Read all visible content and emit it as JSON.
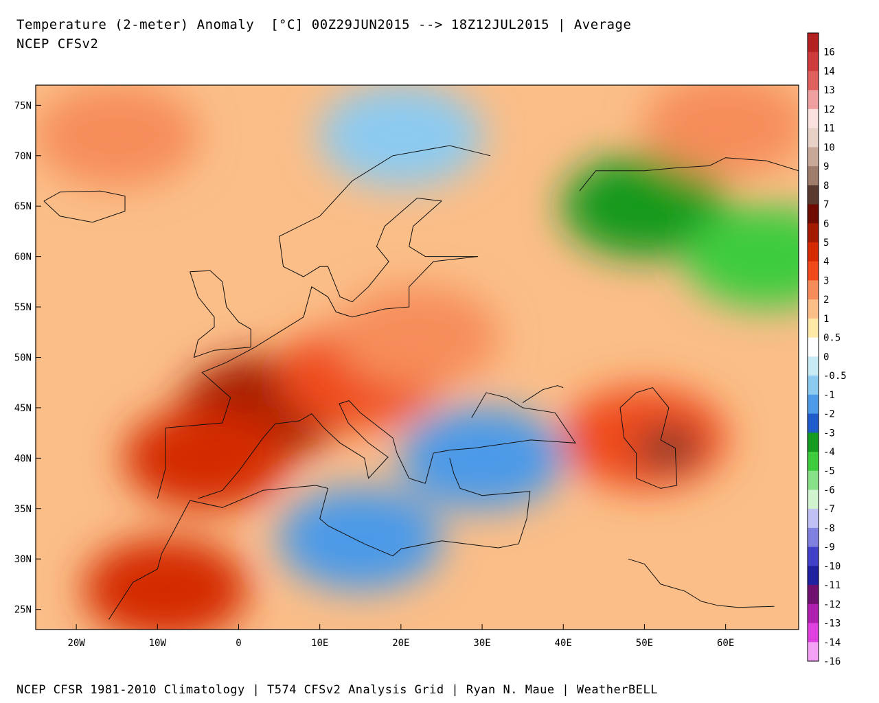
{
  "header": {
    "title": "Temperature (2-meter) Anomaly  [°C] 00Z29JUN2015 --> 18Z12JUL2015 | Average",
    "subtitle": "NCEP CFSv2"
  },
  "footer": {
    "credit": "NCEP CFSR 1981-2010 Climatology | T574 CFSv2 Analysis Grid | Ryan N. Maue | WeatherBELL"
  },
  "map": {
    "extent": {
      "lon": [
        -25,
        69
      ],
      "lat": [
        23,
        77
      ]
    },
    "lon_ticks": [
      {
        "value": -20,
        "label": "20W"
      },
      {
        "value": -10,
        "label": "10W"
      },
      {
        "value": 0,
        "label": "0"
      },
      {
        "value": 10,
        "label": "10E"
      },
      {
        "value": 20,
        "label": "20E"
      },
      {
        "value": 30,
        "label": "30E"
      },
      {
        "value": 40,
        "label": "40E"
      },
      {
        "value": 50,
        "label": "50E"
      },
      {
        "value": 60,
        "label": "60E"
      }
    ],
    "lat_ticks": [
      {
        "value": 25,
        "label": "25N"
      },
      {
        "value": 30,
        "label": "30N"
      },
      {
        "value": 35,
        "label": "35N"
      },
      {
        "value": 40,
        "label": "40N"
      },
      {
        "value": 45,
        "label": "45N"
      },
      {
        "value": 50,
        "label": "50N"
      },
      {
        "value": 55,
        "label": "55N"
      },
      {
        "value": 60,
        "label": "60N"
      },
      {
        "value": 65,
        "label": "65N"
      },
      {
        "value": 70,
        "label": "70N"
      },
      {
        "value": 75,
        "label": "75N"
      }
    ],
    "anomaly_regions": [
      {
        "lon": 3,
        "lat": 45,
        "value": 5
      },
      {
        "lon": 9,
        "lat": 46.5,
        "value": 7
      },
      {
        "lon": -4,
        "lat": 40,
        "value": 4
      },
      {
        "lon": 15,
        "lat": 48,
        "value": 3
      },
      {
        "lon": 22,
        "lat": 52,
        "value": 1.5
      },
      {
        "lon": 50,
        "lat": 42,
        "value": 3
      },
      {
        "lon": 53,
        "lat": 41,
        "value": 7
      },
      {
        "lon": -9,
        "lat": 27,
        "value": 4
      },
      {
        "lon": 50,
        "lat": 65,
        "value": -4
      },
      {
        "lon": 65,
        "lat": 60,
        "value": -5
      },
      {
        "lon": 15,
        "lat": 32,
        "value": -2
      },
      {
        "lon": 30,
        "lat": 40,
        "value": -2
      },
      {
        "lon": 20,
        "lat": 72,
        "value": -1
      },
      {
        "lon": -15,
        "lat": 72,
        "value": 2
      },
      {
        "lon": 60,
        "lat": 73,
        "value": 1.5
      }
    ]
  },
  "colorbar": {
    "entries": [
      {
        "label": "16",
        "color": "#b22222"
      },
      {
        "label": "14",
        "color": "#cd3c3c"
      },
      {
        "label": "13",
        "color": "#e06060"
      },
      {
        "label": "12",
        "color": "#f0a0a0"
      },
      {
        "label": "11",
        "color": "#fbe0e0"
      },
      {
        "label": "10",
        "color": "#e8d2c8"
      },
      {
        "label": "9",
        "color": "#c8a898"
      },
      {
        "label": "8",
        "color": "#a07c6c"
      },
      {
        "label": "7",
        "color": "#5a3a30"
      },
      {
        "label": "6",
        "color": "#6e0a00"
      },
      {
        "label": "5",
        "color": "#a31a00"
      },
      {
        "label": "4",
        "color": "#d42a00"
      },
      {
        "label": "3",
        "color": "#ef4b1a"
      },
      {
        "label": "2",
        "color": "#f68d5a"
      },
      {
        "label": "1",
        "color": "#fbbe88"
      },
      {
        "label": "0.5",
        "color": "#fde8a8"
      },
      {
        "label": "0",
        "color": "#ffffff"
      },
      {
        "label": "-0.5",
        "color": "#c8eaf4"
      },
      {
        "label": "-1",
        "color": "#8ccaf0"
      },
      {
        "label": "-2",
        "color": "#4c9ae8"
      },
      {
        "label": "-3",
        "color": "#1e5ccc"
      },
      {
        "label": "-4",
        "color": "#149a1e"
      },
      {
        "label": "-5",
        "color": "#3ccc3c"
      },
      {
        "label": "-6",
        "color": "#88e088"
      },
      {
        "label": "-7",
        "color": "#d0f4d0"
      },
      {
        "label": "-8",
        "color": "#c0c0f4"
      },
      {
        "label": "-9",
        "color": "#8080e0"
      },
      {
        "label": "-10",
        "color": "#4040c8"
      },
      {
        "label": "-11",
        "color": "#2020a0"
      },
      {
        "label": "-12",
        "color": "#701070"
      },
      {
        "label": "-13",
        "color": "#b020b0"
      },
      {
        "label": "-14",
        "color": "#e040e0"
      },
      {
        "label": "-16",
        "color": "#f4a0f4"
      }
    ]
  }
}
